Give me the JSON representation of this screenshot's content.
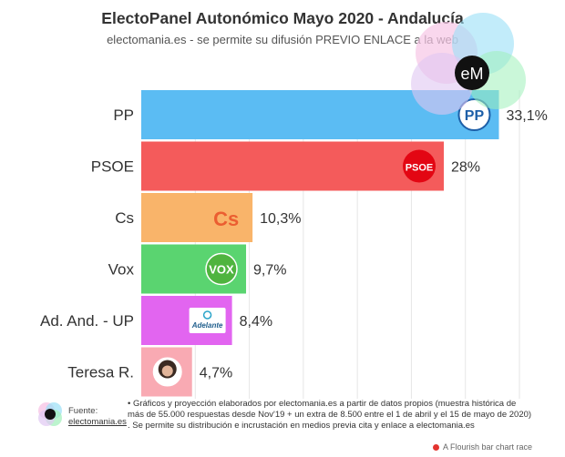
{
  "header": {
    "title": "ElectoPanel Autonómico Mayo 2020 - Andalucía",
    "subtitle": "electomania.es - se permite su difusión PREVIO ENLACE a la web",
    "brand_badge": "eM"
  },
  "chart_data": {
    "type": "bar",
    "orientation": "horizontal",
    "categories": [
      "PP",
      "PSOE",
      "Cs",
      "Vox",
      "Ad. And. - UP",
      "Teresa R."
    ],
    "values": [
      33.1,
      28,
      10.3,
      9.7,
      8.4,
      4.7
    ],
    "value_labels": [
      "33,1%",
      "28%",
      "10,3%",
      "9,7%",
      "8,4%",
      "4,7%"
    ],
    "colors": [
      "#5bbcf3",
      "#f45b5b",
      "#f9b46a",
      "#5ad470",
      "#e265f0",
      "#f9aab3"
    ],
    "logos": [
      "pp-logo-icon",
      "psoe-logo-icon",
      "cs-logo-icon",
      "vox-logo-icon",
      "adelante-logo-icon",
      "teresa-photo-icon"
    ],
    "logo_texts": [
      "PP",
      "PSOE",
      "Cs",
      "VOX",
      "Adelante",
      ""
    ],
    "xlim": [
      0,
      35
    ],
    "grid": true,
    "title": "ElectoPanel Autonómico Mayo 2020 - Andalucía"
  },
  "footer": {
    "source_label": "Fuente:",
    "source_link": "electomania.es",
    "note": "• Gráficos y proyección elaborados por electomania.es a partir de datos propios (muestra histórica de más de 55.000 respuestas desde Nov'19 + un extra de 8.500 entre el 1 de abril y el 15 de mayo de 2020) . Se permite su distribución e incrustación en medios previa cita y enlace a electomania.es",
    "credit": "A Flourish bar chart race"
  }
}
